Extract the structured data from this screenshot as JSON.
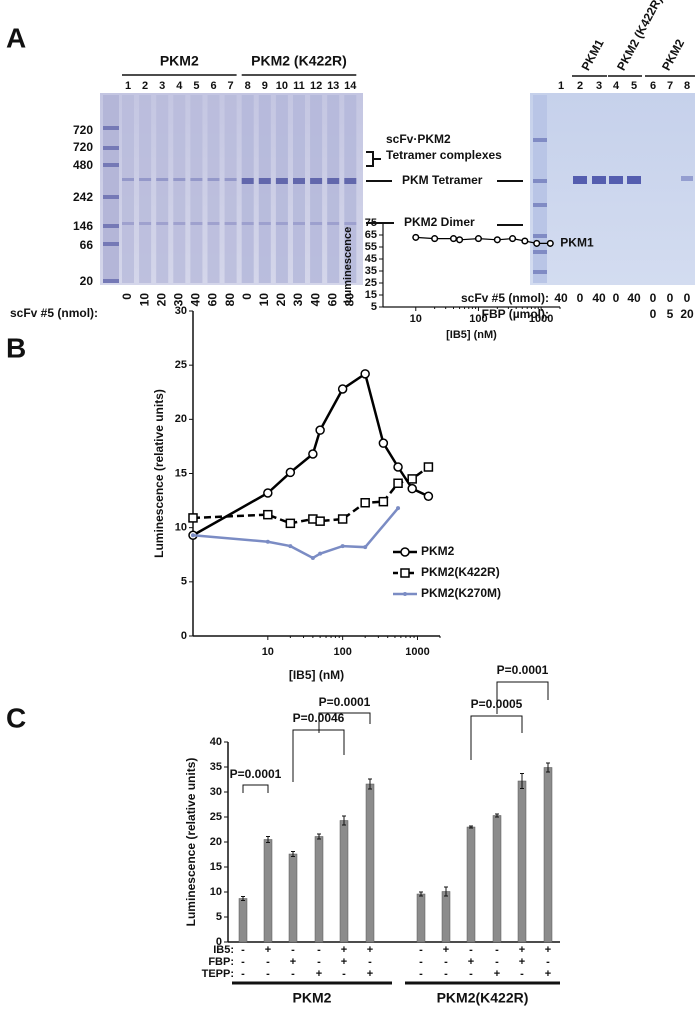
{
  "panel_a": {
    "label": "A",
    "left_gel": {
      "groups": [
        "PKM2",
        "PKM2 (K422R)"
      ],
      "lanes": [
        1,
        2,
        3,
        4,
        5,
        6,
        7,
        8,
        9,
        10,
        11,
        12,
        13,
        14
      ],
      "markers": [
        720,
        720,
        480,
        242,
        146,
        66,
        20
      ],
      "scfv_label": "scFv #5 (nmol):",
      "scfv": [
        0,
        10,
        20,
        30,
        40,
        60,
        80,
        0,
        10,
        20,
        30,
        40,
        60,
        80
      ]
    },
    "annotations": [
      "scFv·PKM2",
      "Tetramer complexes",
      "PKM Tetramer",
      "PKM2 Dimer"
    ],
    "right_gel": {
      "groups": [
        "PKM1",
        "PKM2 (K422R)",
        "PKM2"
      ],
      "lanes": [
        1,
        2,
        3,
        4,
        5,
        6,
        7,
        8
      ],
      "scfv_label": "scFv #5 (nmol):",
      "scfv": [
        40,
        0,
        40,
        0,
        40,
        0,
        0,
        0
      ],
      "fbp_label": "FBP (µmol):",
      "fbp": [
        0,
        5,
        20
      ]
    }
  },
  "chart_data": [
    {
      "type": "line",
      "panel": "B",
      "ylabel": "Luminescence (relative units)",
      "xlabel": "[IB5] (nM)",
      "xscale": "log",
      "xlim": [
        1,
        2000
      ],
      "ylim": [
        0,
        30
      ],
      "xticks": [
        10,
        100,
        1000
      ],
      "yticks": [
        0,
        5,
        10,
        15,
        20,
        25,
        30
      ],
      "legend": "lower right",
      "series": [
        {
          "name": "PKM2",
          "color": "#000000",
          "marker": "circle",
          "dash": false,
          "x": [
            1,
            10,
            20,
            40,
            50,
            100,
            200,
            350,
            550,
            850,
            1400
          ],
          "values": [
            9.3,
            13.2,
            15.1,
            16.8,
            19,
            22.8,
            24.2,
            17.8,
            15.6,
            13.6,
            12.9
          ]
        },
        {
          "name": "PKM2(K422R)",
          "color": "#000000",
          "marker": "square",
          "dash": true,
          "x": [
            1,
            10,
            20,
            40,
            50,
            100,
            200,
            350,
            550,
            850,
            1400
          ],
          "values": [
            10.9,
            11.2,
            10.4,
            10.8,
            10.6,
            10.8,
            12.3,
            12.4,
            14.1,
            14.5,
            15.6
          ]
        },
        {
          "name": "PKM2(K270M)",
          "color": "#7b8cc4",
          "marker": "dot",
          "dash": false,
          "x": [
            1,
            10,
            20,
            40,
            50,
            100,
            200,
            550
          ],
          "values": [
            9.3,
            8.7,
            8.3,
            7.2,
            7.6,
            8.3,
            8.2,
            11.8
          ]
        }
      ]
    },
    {
      "type": "line",
      "ylabel": "Luminescence",
      "xlabel": "[IB5] (nM)",
      "xscale": "log",
      "xlim": [
        3,
        2000
      ],
      "ylim": [
        5,
        75
      ],
      "xticks": [
        10,
        100,
        1000
      ],
      "yticks": [
        5,
        15,
        25,
        35,
        45,
        55,
        65,
        75
      ],
      "series": [
        {
          "name": "PKM1",
          "color": "#000000",
          "marker": "circle",
          "dash": false,
          "x": [
            10,
            20,
            40,
            50,
            100,
            200,
            350,
            550,
            850,
            1400
          ],
          "values": [
            63,
            62,
            62,
            61,
            62,
            61,
            62,
            60,
            58,
            58
          ]
        }
      ]
    },
    {
      "type": "bar",
      "panel": "C",
      "ylabel": "Luminescence (relative units)",
      "ylim": [
        0,
        40
      ],
      "yticks": [
        0,
        5,
        10,
        15,
        20,
        25,
        30,
        35,
        40
      ],
      "color": "#8c8c8c",
      "groups": [
        {
          "name": "PKM2",
          "values": [
            8.7,
            20.5,
            17.6,
            21.1,
            24.3,
            31.6
          ],
          "errors": [
            0.4,
            0.6,
            0.5,
            0.5,
            0.9,
            1.0
          ]
        },
        {
          "name": "PKM2(K422R)",
          "values": [
            9.6,
            10.1,
            23.0,
            25.3,
            32.2,
            34.9
          ],
          "errors": [
            0.4,
            0.9,
            0.2,
            0.3,
            1.5,
            0.9
          ]
        }
      ],
      "conditions": [
        {
          "name": "IB5:",
          "signs": [
            "-",
            "+",
            "-",
            "-",
            "+",
            "+",
            "-",
            "+",
            "-",
            "-",
            "+",
            "+"
          ]
        },
        {
          "name": "FBP:",
          "signs": [
            "-",
            "-",
            "+",
            "-",
            "+",
            "-",
            "-",
            "-",
            "+",
            "-",
            "+",
            "-"
          ]
        },
        {
          "name": "TEPP:",
          "signs": [
            "-",
            "-",
            "-",
            "+",
            "-",
            "+",
            "-",
            "-",
            "-",
            "+",
            "-",
            "+"
          ]
        }
      ],
      "comparisons": [
        "P=0.0001",
        "P=0.0046",
        "P=0.0001",
        "P=0.0005",
        "P=0.0001"
      ]
    }
  ]
}
